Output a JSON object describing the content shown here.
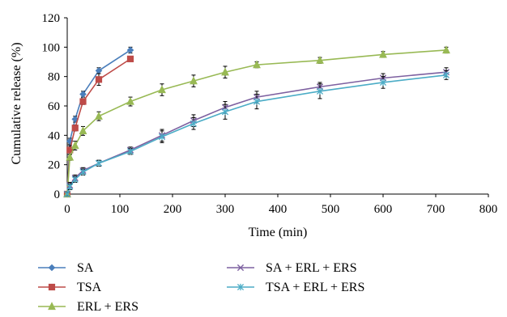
{
  "chart_data": {
    "type": "line",
    "xlabel": "Time (min)",
    "ylabel": "Cumulative release (%)",
    "xlim": [
      0,
      800
    ],
    "ylim": [
      0,
      120
    ],
    "xticks": [
      "0",
      "100",
      "200",
      "300",
      "400",
      "500",
      "600",
      "700",
      "800"
    ],
    "yticks": [
      "0",
      "20",
      "40",
      "60",
      "80",
      "100",
      "120"
    ],
    "grid": false,
    "legend_position": "bottom",
    "series": [
      {
        "name": "SA",
        "color": "#4a7ebb",
        "marker": "diamond",
        "x": [
          0,
          5,
          15,
          30,
          60,
          120
        ],
        "y": [
          0,
          36,
          51,
          68,
          84,
          98
        ],
        "err": [
          1,
          2,
          2,
          2,
          2,
          2
        ]
      },
      {
        "name": "TSA",
        "color": "#be4b48",
        "marker": "square",
        "x": [
          0,
          5,
          15,
          30,
          60,
          120
        ],
        "y": [
          0,
          30,
          45,
          63,
          78,
          92
        ],
        "err": [
          1,
          3,
          2,
          2,
          4,
          1
        ]
      },
      {
        "name": "ERL + ERS",
        "color": "#98b954",
        "marker": "triangle",
        "x": [
          0,
          5,
          15,
          30,
          60,
          120,
          180,
          240,
          300,
          360,
          480,
          600,
          720
        ],
        "y": [
          0,
          25,
          33,
          43,
          53,
          63,
          71,
          77,
          83,
          88,
          91,
          95,
          98
        ],
        "err": [
          1,
          2,
          3,
          3,
          3,
          3,
          4,
          4,
          4,
          2,
          2,
          2,
          2
        ]
      },
      {
        "name": "SA + ERL + ERS",
        "color": "#7d60a0",
        "marker": "x",
        "x": [
          0,
          5,
          15,
          30,
          60,
          120,
          180,
          240,
          300,
          360,
          480,
          600,
          720
        ],
        "y": [
          0,
          6,
          11,
          16,
          21,
          30,
          40,
          50,
          59,
          66,
          73,
          79,
          83
        ],
        "err": [
          1,
          2,
          2,
          2,
          2,
          2,
          4,
          4,
          4,
          4,
          3,
          3,
          3
        ]
      },
      {
        "name": "TSA + ERL + ERS",
        "color": "#4bacc6",
        "marker": "star",
        "x": [
          0,
          5,
          15,
          30,
          60,
          120,
          180,
          240,
          300,
          360,
          480,
          600,
          720
        ],
        "y": [
          0,
          5,
          10,
          15,
          21,
          29,
          39,
          48,
          56,
          63,
          70,
          76,
          81
        ],
        "err": [
          1,
          2,
          2,
          2,
          2,
          2,
          4,
          4,
          5,
          5,
          5,
          4,
          3
        ]
      }
    ]
  }
}
